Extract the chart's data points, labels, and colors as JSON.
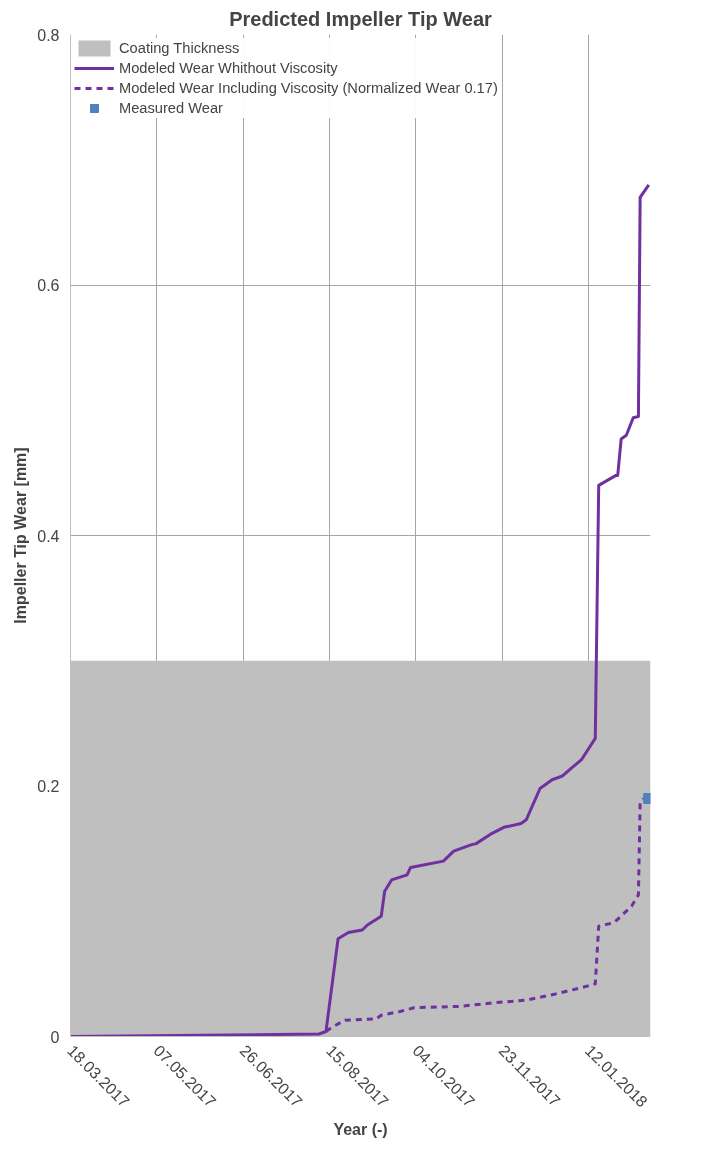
{
  "chart_data": {
    "type": "line",
    "title": "Predicted Impeller Tip Wear",
    "xlabel": "Year (-)",
    "ylabel": "Impeller Tip Wear [mm]",
    "xlim": [
      "2017-03-18",
      "2018-02-17"
    ],
    "ylim": [
      0,
      0.8
    ],
    "xticks": [
      {
        "value": "2017-03-18",
        "label": "18.03.2017"
      },
      {
        "value": "2017-05-07",
        "label": "07.05.2017"
      },
      {
        "value": "2017-06-26",
        "label": "26.06.2017"
      },
      {
        "value": "2017-08-15",
        "label": "15.08.2017"
      },
      {
        "value": "2017-10-04",
        "label": "04.10.2017"
      },
      {
        "value": "2017-11-23",
        "label": "23.11.2017"
      },
      {
        "value": "2018-01-12",
        "label": "12.01.2018"
      }
    ],
    "yticks": [
      0,
      0.2,
      0.4,
      0.6,
      0.8
    ],
    "grid": true,
    "legend": "top",
    "series": [
      {
        "name": "Coating Thickness",
        "type": "area",
        "color": "#bfbfbf",
        "x": [
          "2017-03-18",
          "2018-02-17"
        ],
        "values": [
          0.3,
          0.3
        ]
      },
      {
        "name": "Modeled Wear Whithout Viscosity",
        "line_style": "solid",
        "color": "#7030a0",
        "x": [
          "2017-03-18",
          "2017-08-09",
          "2017-08-13",
          "2017-08-20",
          "2017-08-26",
          "2017-09-03",
          "2017-09-06",
          "2017-09-14",
          "2017-09-16",
          "2017-09-20",
          "2017-09-29",
          "2017-10-01",
          "2017-10-20",
          "2017-10-26",
          "2017-11-05",
          "2017-11-08",
          "2017-11-17",
          "2017-11-24",
          "2017-12-04",
          "2017-12-07",
          "2017-12-15",
          "2017-12-22",
          "2017-12-28",
          "2018-01-02",
          "2018-01-08",
          "2018-01-16",
          "2018-01-18",
          "2018-01-28",
          "2018-01-29",
          "2018-01-31",
          "2018-02-03",
          "2018-02-07",
          "2018-02-10",
          "2018-02-11",
          "2018-02-16"
        ],
        "values": [
          0,
          0.002,
          0.004,
          0.078,
          0.083,
          0.085,
          0.089,
          0.096,
          0.116,
          0.125,
          0.129,
          0.135,
          0.14,
          0.148,
          0.153,
          0.154,
          0.162,
          0.167,
          0.17,
          0.173,
          0.198,
          0.205,
          0.208,
          0.214,
          0.221,
          0.238,
          0.44,
          0.448,
          0.448,
          0.477,
          0.48,
          0.494,
          0.495,
          0.67,
          0.68
        ]
      },
      {
        "name": "Modeled Wear Including Viscosity (Normalized Wear 0.17)",
        "line_style": "dashed",
        "color": "#7030a0",
        "x": [
          "2017-08-13",
          "2017-08-16",
          "2017-08-24",
          "2017-09-11",
          "2017-09-14",
          "2017-09-25",
          "2017-10-03",
          "2017-10-29",
          "2017-11-19",
          "2017-12-07",
          "2017-12-24",
          "2018-01-08",
          "2018-01-16",
          "2018-01-18",
          "2018-01-27",
          "2018-02-06",
          "2018-02-10",
          "2018-02-11",
          "2018-02-13"
        ],
        "values": [
          0.004,
          0.007,
          0.013,
          0.014,
          0.017,
          0.02,
          0.023,
          0.024,
          0.027,
          0.029,
          0.034,
          0.039,
          0.042,
          0.088,
          0.091,
          0.104,
          0.113,
          0.187,
          0.19
        ]
      },
      {
        "name": "Measured Wear",
        "type": "scatter",
        "marker": "square",
        "color": "#4f81bd",
        "x": [
          "2018-02-16"
        ],
        "values": [
          0.19
        ]
      }
    ]
  }
}
